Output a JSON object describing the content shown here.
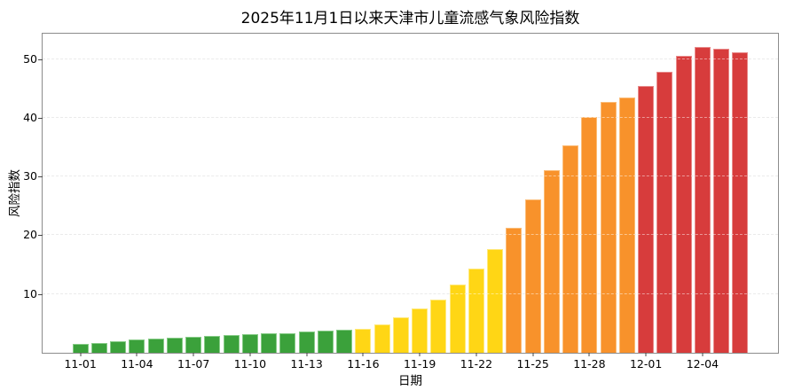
{
  "title": "2025年11月1日以来天津市儿童流感气象风险指数",
  "chart_data": {
    "type": "bar",
    "title": "2025年11月1日以来天津市儿童流感气象风险指数",
    "xlabel": "日期",
    "ylabel": "风险指数",
    "ylim": [
      0,
      54.3
    ],
    "yticks": [
      10,
      20,
      30,
      40,
      50
    ],
    "xtick_labels": [
      "11-01",
      "11-04",
      "11-07",
      "11-10",
      "11-13",
      "11-16",
      "11-19",
      "11-22",
      "11-25",
      "11-28",
      "12-01",
      "12-04"
    ],
    "grid": "horizontal dashed gridlines at each ytick, drawn faintly over bars",
    "legend": "none",
    "categories": [
      "11-01",
      "11-02",
      "11-03",
      "11-04",
      "11-05",
      "11-06",
      "11-07",
      "11-08",
      "11-09",
      "11-10",
      "11-11",
      "11-12",
      "11-13",
      "11-14",
      "11-15",
      "11-16",
      "11-17",
      "11-18",
      "11-19",
      "11-20",
      "11-21",
      "11-22",
      "11-23",
      "11-24",
      "11-25",
      "11-26",
      "11-27",
      "11-28",
      "11-29",
      "11-30",
      "12-01",
      "12-02",
      "12-03",
      "12-04",
      "12-05",
      "12-06"
    ],
    "values": [
      1.5,
      1.7,
      2.0,
      2.2,
      2.4,
      2.5,
      2.7,
      2.9,
      3.0,
      3.1,
      3.3,
      3.4,
      3.6,
      3.8,
      3.9,
      4.1,
      4.8,
      6.1,
      7.5,
      9.1,
      11.6,
      14.4,
      17.6,
      21.3,
      26.1,
      31.1,
      35.3,
      40.1,
      42.7,
      43.5,
      45.4,
      47.8,
      50.5,
      52.0,
      51.7,
      51.2
    ],
    "bar_levels": [
      "green",
      "green",
      "green",
      "green",
      "green",
      "green",
      "green",
      "green",
      "green",
      "green",
      "green",
      "green",
      "green",
      "green",
      "green",
      "yellow",
      "yellow",
      "yellow",
      "yellow",
      "yellow",
      "yellow",
      "yellow",
      "yellow",
      "orange",
      "orange",
      "orange",
      "orange",
      "orange",
      "orange",
      "orange",
      "red",
      "red",
      "red",
      "red",
      "red",
      "red"
    ],
    "palette": {
      "green": {
        "fill": "#3BA13B",
        "edge": "#86CB86"
      },
      "yellow": {
        "fill": "#FFD615",
        "edge": "#FFE97D"
      },
      "orange": {
        "fill": "#F8922B",
        "edge": "#FBBC77"
      },
      "red": {
        "fill": "#D73C3C",
        "edge": "#E88A8A"
      }
    },
    "axis_style": {
      "spine_color": "#8c8c8c",
      "tick_color": "#444444",
      "gridline_color": "#d9d9d9"
    }
  }
}
